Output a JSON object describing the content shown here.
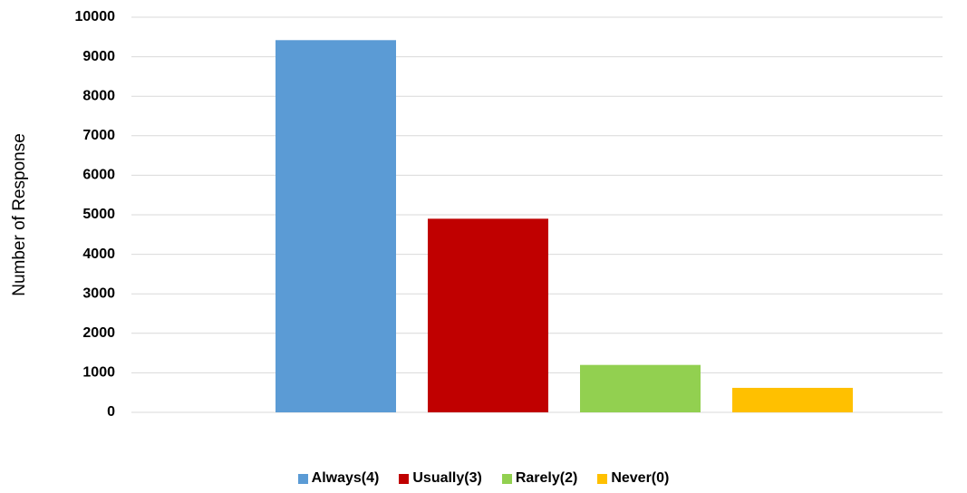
{
  "chart_data": {
    "type": "bar",
    "y_label": "Number of Response",
    "categories": [
      null
    ],
    "series": [
      {
        "name": "Always(4)",
        "color": "#5b9bd5",
        "values": [
          9420
        ]
      },
      {
        "name": "Usually(3)",
        "color": "#c00000",
        "values": [
          4900
        ]
      },
      {
        "name": "Rarely(2)",
        "color": "#92d050",
        "values": [
          1200
        ]
      },
      {
        "name": "Never(0)",
        "color": "#ffc000",
        "values": [
          620
        ]
      }
    ],
    "ylim": [
      0,
      10000
    ],
    "yticks": [
      0,
      1000,
      2000,
      3000,
      4000,
      5000,
      6000,
      7000,
      8000,
      9000,
      10000
    ],
    "grid": true,
    "legend": "bottom"
  }
}
